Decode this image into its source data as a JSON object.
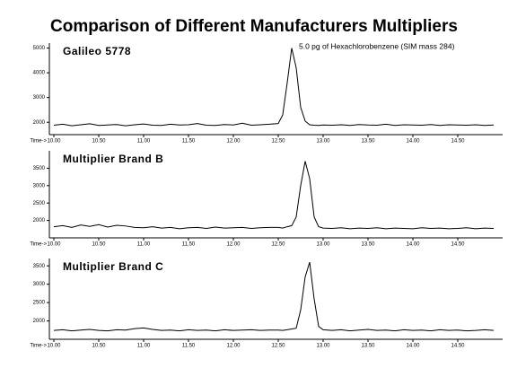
{
  "title": "Comparison of Different Manufacturers Multipliers",
  "annotation": "5.0 pg of Hexachlorobenzene (SIM mass 284)",
  "chart_data": [
    {
      "type": "line",
      "title": "Galileo 5778",
      "xlabel": "Time->",
      "x": [
        10.0,
        10.1,
        10.2,
        10.3,
        10.4,
        10.5,
        10.6,
        10.7,
        10.8,
        10.9,
        11.0,
        11.1,
        11.2,
        11.3,
        11.4,
        11.5,
        11.6,
        11.7,
        11.8,
        11.9,
        12.0,
        12.1,
        12.2,
        12.3,
        12.4,
        12.5,
        12.55,
        12.6,
        12.65,
        12.7,
        12.75,
        12.8,
        12.85,
        12.9,
        12.95,
        13.0,
        13.1,
        13.2,
        13.3,
        13.4,
        13.5,
        13.6,
        13.7,
        13.8,
        13.9,
        14.0,
        14.1,
        14.2,
        14.3,
        14.4,
        14.5,
        14.6,
        14.7,
        14.8,
        14.9
      ],
      "series": [
        {
          "color": "#000000",
          "values": [
            1880,
            1920,
            1860,
            1900,
            1940,
            1870,
            1890,
            1910,
            1860,
            1900,
            1930,
            1880,
            1870,
            1920,
            1890,
            1900,
            1950,
            1880,
            1870,
            1910,
            1890,
            1960,
            1880,
            1900,
            1920,
            1950,
            2300,
            3600,
            5000,
            4200,
            2600,
            2050,
            1900,
            1880,
            1870,
            1890,
            1880,
            1900,
            1870,
            1910,
            1890,
            1880,
            1920,
            1870,
            1900,
            1890,
            1880,
            1910,
            1870,
            1900,
            1890,
            1880,
            1900,
            1870,
            1890
          ]
        }
      ],
      "xlim": [
        9.95,
        15.0
      ],
      "xticks": [
        {
          "value": 10.0,
          "label": "10.00"
        },
        {
          "value": 10.5,
          "label": "10.50"
        },
        {
          "value": 11.0,
          "label": "11.00"
        },
        {
          "value": 11.5,
          "label": "11.50"
        },
        {
          "value": 12.0,
          "label": "12.00"
        },
        {
          "value": 12.5,
          "label": "12.50"
        },
        {
          "value": 13.0,
          "label": "13.00"
        },
        {
          "value": 13.5,
          "label": "13.50"
        },
        {
          "value": 14.0,
          "label": "14.00"
        },
        {
          "value": 14.5,
          "label": "14.50"
        }
      ],
      "ylim": [
        1500,
        5200
      ],
      "yticks": [
        2000,
        3000,
        4000,
        5000
      ]
    },
    {
      "type": "line",
      "title": "Multiplier Brand B",
      "xlabel": "Time->",
      "x": [
        10.0,
        10.1,
        10.2,
        10.3,
        10.4,
        10.5,
        10.6,
        10.7,
        10.8,
        10.9,
        11.0,
        11.1,
        11.2,
        11.3,
        11.4,
        11.5,
        11.6,
        11.7,
        11.8,
        11.9,
        12.0,
        12.1,
        12.2,
        12.3,
        12.4,
        12.5,
        12.55,
        12.6,
        12.65,
        12.7,
        12.75,
        12.8,
        12.85,
        12.9,
        12.95,
        13.0,
        13.1,
        13.2,
        13.3,
        13.4,
        13.5,
        13.6,
        13.7,
        13.8,
        13.9,
        14.0,
        14.1,
        14.2,
        14.3,
        14.4,
        14.5,
        14.6,
        14.7,
        14.8,
        14.9
      ],
      "series": [
        {
          "color": "#000000",
          "values": [
            1820,
            1850,
            1800,
            1870,
            1830,
            1880,
            1810,
            1860,
            1840,
            1800,
            1790,
            1820,
            1780,
            1800,
            1760,
            1790,
            1800,
            1770,
            1810,
            1780,
            1790,
            1800,
            1770,
            1790,
            1800,
            1800,
            1780,
            1820,
            1850,
            2100,
            3000,
            3700,
            3200,
            2100,
            1820,
            1780,
            1770,
            1790,
            1760,
            1780,
            1770,
            1790,
            1760,
            1780,
            1770,
            1760,
            1790,
            1770,
            1780,
            1760,
            1770,
            1790,
            1760,
            1780,
            1770
          ]
        }
      ],
      "xlim": [
        9.95,
        15.0
      ],
      "xticks": [
        {
          "value": 10.0,
          "label": "10.00"
        },
        {
          "value": 10.5,
          "label": "10.50"
        },
        {
          "value": 11.0,
          "label": "11.00"
        },
        {
          "value": 11.5,
          "label": "11.50"
        },
        {
          "value": 12.0,
          "label": "12.00"
        },
        {
          "value": 12.5,
          "label": "12.50"
        },
        {
          "value": 13.0,
          "label": "13.00"
        },
        {
          "value": 13.5,
          "label": "13.50"
        },
        {
          "value": 14.0,
          "label": "14.00"
        },
        {
          "value": 14.5,
          "label": "14.50"
        }
      ],
      "ylim": [
        1500,
        4000
      ],
      "yticks": [
        2000,
        2500,
        3000,
        3500
      ]
    },
    {
      "type": "line",
      "title": "Multiplier Brand C",
      "xlabel": "Time->",
      "x": [
        10.0,
        10.1,
        10.2,
        10.3,
        10.4,
        10.5,
        10.6,
        10.7,
        10.8,
        10.9,
        11.0,
        11.1,
        11.2,
        11.3,
        11.4,
        11.5,
        11.6,
        11.7,
        11.8,
        11.9,
        12.0,
        12.1,
        12.2,
        12.3,
        12.4,
        12.5,
        12.55,
        12.6,
        12.65,
        12.7,
        12.75,
        12.8,
        12.85,
        12.9,
        12.95,
        13.0,
        13.1,
        13.2,
        13.3,
        13.4,
        13.5,
        13.6,
        13.7,
        13.8,
        13.9,
        14.0,
        14.1,
        14.2,
        14.3,
        14.4,
        14.5,
        14.6,
        14.7,
        14.8,
        14.9
      ],
      "series": [
        {
          "color": "#000000",
          "values": [
            1740,
            1760,
            1730,
            1750,
            1770,
            1740,
            1730,
            1760,
            1750,
            1790,
            1810,
            1770,
            1740,
            1750,
            1730,
            1760,
            1740,
            1750,
            1730,
            1760,
            1740,
            1750,
            1760,
            1740,
            1750,
            1750,
            1740,
            1760,
            1780,
            1800,
            2300,
            3200,
            3600,
            2600,
            1850,
            1760,
            1740,
            1760,
            1730,
            1750,
            1770,
            1740,
            1750,
            1730,
            1760,
            1740,
            1750,
            1730,
            1760,
            1740,
            1750,
            1730,
            1740,
            1760,
            1740
          ]
        }
      ],
      "xlim": [
        9.95,
        15.0
      ],
      "xticks": [
        {
          "value": 10.0,
          "label": "10.00"
        },
        {
          "value": 10.5,
          "label": "10.50"
        },
        {
          "value": 11.0,
          "label": "11.00"
        },
        {
          "value": 11.5,
          "label": "11.50"
        },
        {
          "value": 12.0,
          "label": "12.00"
        },
        {
          "value": 12.5,
          "label": "12.50"
        },
        {
          "value": 13.0,
          "label": "13.00"
        },
        {
          "value": 13.5,
          "label": "13.50"
        },
        {
          "value": 14.0,
          "label": "14.00"
        },
        {
          "value": 14.5,
          "label": "14.50"
        }
      ],
      "ylim": [
        1500,
        3700
      ],
      "yticks": [
        2000,
        2500,
        3000,
        3500
      ]
    }
  ]
}
